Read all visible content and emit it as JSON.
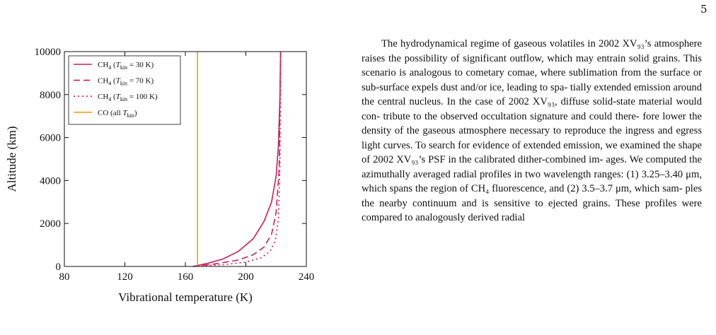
{
  "page": {
    "number": "5"
  },
  "figure": {
    "chart_data": {
      "type": "line",
      "xlabel": "Vibrational temperature (K)",
      "ylabel": "Altitude (km)",
      "xlim": [
        80,
        240
      ],
      "ylim": [
        0,
        10000
      ],
      "xticks": [
        80,
        120,
        160,
        200,
        240
      ],
      "yticks": [
        0,
        2000,
        4000,
        6000,
        8000,
        10000
      ],
      "legend_position": "top-left",
      "grid": false,
      "series": [
        {
          "name": "CH4 (T_kin = 30 K)",
          "legend_main": "CH",
          "legend_sub": "4",
          "legend_rest": " (",
          "legend_T": "T",
          "legend_Tsub": "kin",
          "legend_tail": " = 30 K)",
          "color": "#cc1f5e",
          "dash": "solid",
          "x": [
            165,
            175,
            185,
            195,
            205,
            212,
            217,
            220,
            221.5,
            222.5,
            223
          ],
          "y": [
            0,
            150,
            350,
            700,
            1300,
            2100,
            3000,
            4200,
            5600,
            7800,
            10000
          ]
        },
        {
          "name": "CH4 (T_kin = 70 K)",
          "legend_main": "CH",
          "legend_sub": "4",
          "legend_rest": " (",
          "legend_T": "T",
          "legend_Tsub": "kin",
          "legend_tail": " = 70 K)",
          "color": "#cc1f5e",
          "dash": "dashed",
          "x": [
            165,
            180,
            195,
            205,
            212,
            217,
            220,
            222,
            223
          ],
          "y": [
            0,
            120,
            300,
            550,
            900,
            1500,
            2500,
            4500,
            10000
          ]
        },
        {
          "name": "CH4 (T_kin = 100 K)",
          "legend_main": "CH",
          "legend_sub": "4",
          "legend_rest": " (",
          "legend_T": "T",
          "legend_Tsub": "kin",
          "legend_tail": " = 100 K)",
          "color": "#cc1f5e",
          "dash": "dotted",
          "x": [
            165,
            185,
            200,
            210,
            216,
            219.5,
            221.5,
            222.5,
            223
          ],
          "y": [
            0,
            80,
            200,
            400,
            700,
            1200,
            2200,
            4500,
            10000
          ]
        },
        {
          "name": "CO (all T_kin)",
          "legend_main": "CO (all ",
          "legend_sub": "",
          "legend_rest": "",
          "legend_T": "T",
          "legend_Tsub": "kin",
          "legend_tail": ")",
          "color": "#e8a317",
          "dash": "solid",
          "x": [
            168,
            168
          ],
          "y": [
            0,
            10000
          ]
        }
      ]
    }
  },
  "text": {
    "lines": [
      "The hydrodynamical regime of gaseous volatiles in",
      "2002 XV₉₃’s atmosphere raises the possibility of significant",
      "outflow, which may entrain solid grains.  This scenario is",
      "analogous to cometary comae, where sublimation from the",
      "surface or sub-surface expels dust and/or ice, leading to spa-",
      "tially extended emission around the central nucleus.  In the",
      "case of 2002 XV₉₃, diffuse solid-state material would con-",
      "tribute to the observed occultation signature and could there-",
      "fore lower the density of the gaseous atmosphere necessary",
      "to reproduce the ingress and egress light curves.  To search",
      "for evidence of extended emission, we examined the shape",
      "of 2002 XV₉₃’s PSF in the calibrated dither-combined im-",
      "ages. We computed the azimuthally averaged radial profiles",
      "in two wavelength ranges: (1) 3.25–3.40 μm, which spans the",
      "region of CH₄ fluorescence, and (2) 3.5–3.7 μm, which sam-",
      "ples the nearby continuum and is sensitive to ejected grains.",
      "These profiles were compared to analogously derived radial"
    ]
  }
}
